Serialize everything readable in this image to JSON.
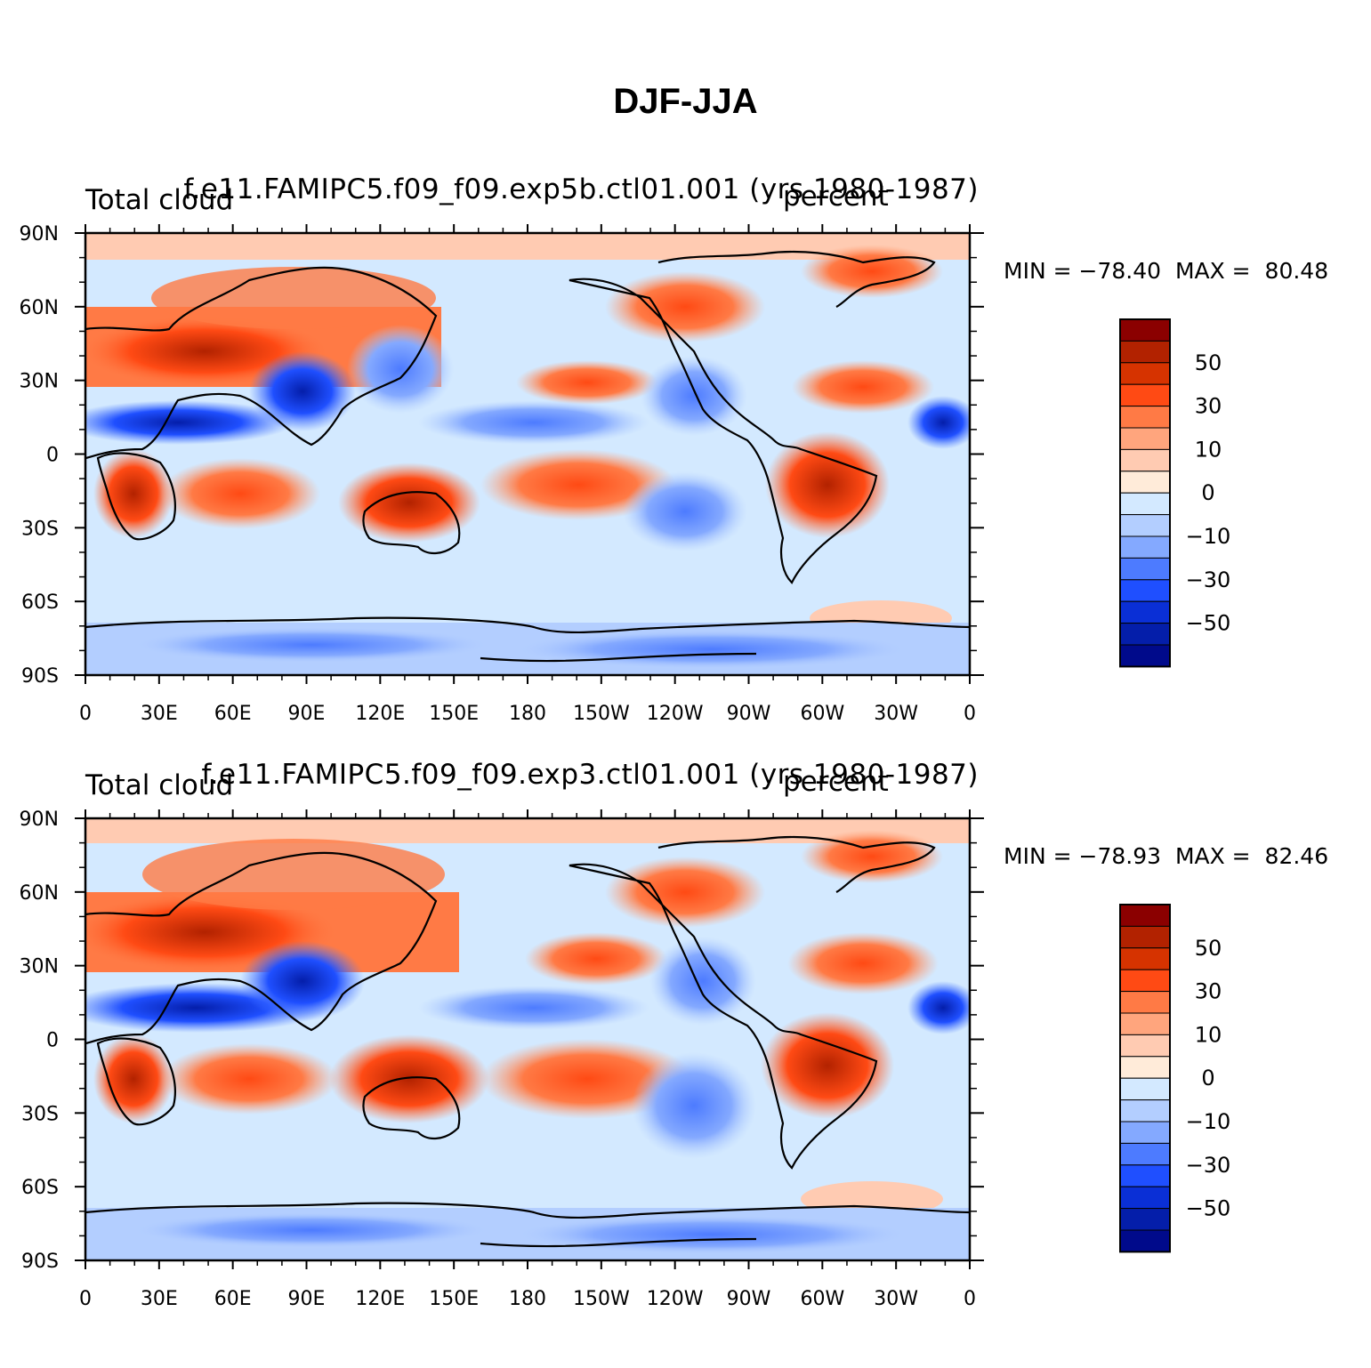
{
  "figure": {
    "title": "DJF-JJA"
  },
  "panels": [
    {
      "case_title": "f.e11.FAMIPC5.f09_f09.exp5b.ctl01.001 (yrs 1980-1987)",
      "variable": "Total cloud",
      "units": "percent",
      "min_label": "MIN =",
      "min_value": "−78.40",
      "max_label": "MAX =",
      "max_value": "80.48"
    },
    {
      "case_title": "f.e11.FAMIPC5.f09_f09.exp3.ctl01.001 (yrs 1980-1987)",
      "variable": "Total cloud",
      "units": "percent",
      "min_label": "MIN =",
      "min_value": "−78.93",
      "max_label": "MAX =",
      "max_value": "82.46"
    }
  ],
  "axes": {
    "lon_ticks": [
      "0",
      "30E",
      "60E",
      "90E",
      "120E",
      "150E",
      "180",
      "150W",
      "120W",
      "90W",
      "60W",
      "30W",
      "0"
    ],
    "lat_ticks": [
      "90N",
      "60N",
      "30N",
      "0",
      "30S",
      "60S",
      "90S"
    ]
  },
  "colorbar": {
    "colors": [
      "#8b0000",
      "#b22200",
      "#d63300",
      "#ff4a14",
      "#ff7a45",
      "#ffa57d",
      "#ffcbb2",
      "#ffebd9",
      "#d3e9ff",
      "#b3ceff",
      "#84a9ff",
      "#4d7bff",
      "#1f4fff",
      "#0a2fd6",
      "#041eaa",
      "#000a8b"
    ],
    "labels": [
      "50",
      "30",
      "10",
      "0",
      "−10",
      "−30",
      "−50"
    ]
  }
}
